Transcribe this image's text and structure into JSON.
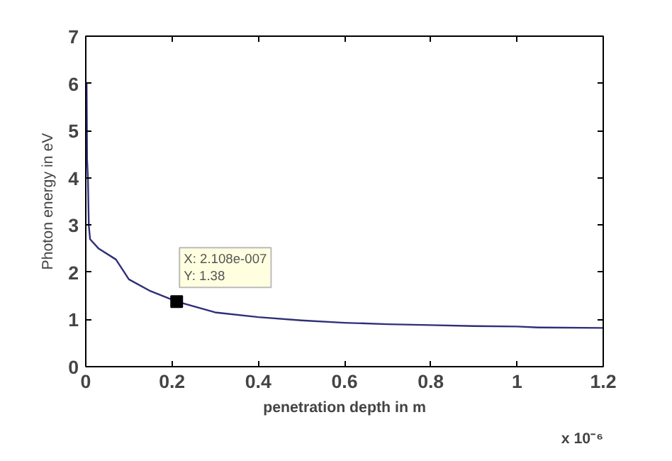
{
  "chart_data": {
    "type": "line",
    "xlabel": "penetration depth in m",
    "ylabel": "Photon energy in eV",
    "x": [
      0.002,
      0.003,
      0.005,
      0.007,
      0.01,
      0.03,
      0.07,
      0.1,
      0.15,
      0.2108,
      0.3,
      0.4,
      0.5,
      0.6,
      0.7,
      0.8,
      0.9,
      1.0,
      1.05,
      1.2
    ],
    "series": [
      {
        "color": "#2e2e7a",
        "values": [
          6.0,
          4.4,
          4.0,
          3.0,
          2.7,
          2.5,
          2.27,
          1.85,
          1.6,
          1.38,
          1.15,
          1.05,
          0.98,
          0.93,
          0.9,
          0.88,
          0.86,
          0.85,
          0.83,
          0.82
        ]
      }
    ],
    "xlim": [
      0,
      1.2
    ],
    "xticks": [
      0,
      0.2,
      0.4,
      0.6,
      0.8,
      1,
      1.2
    ],
    "ylim": [
      0,
      7
    ],
    "yticks": [
      0,
      1,
      2,
      3,
      4,
      5,
      6,
      7
    ],
    "grid": false,
    "marker": "none",
    "line_style": "solid",
    "annotations": [
      {
        "text": "X: 2.108e-007\nY: 1.38",
        "x": 0.2108,
        "y": 1.38
      },
      "x 10⁻⁶"
    ]
  }
}
